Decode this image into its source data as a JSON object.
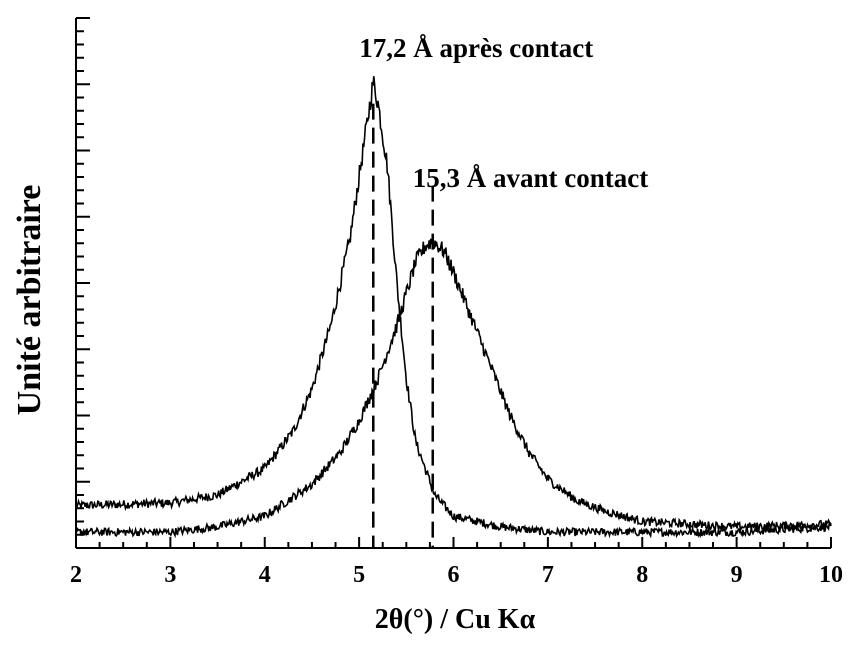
{
  "chart_data": {
    "type": "line",
    "xlabel": "2θ(°) / Cu Kα",
    "ylabel": "Unité arbitraire",
    "xlim": [
      2,
      10
    ],
    "ylim": [
      0,
      100
    ],
    "x_ticks": [
      "2",
      "3",
      "4",
      "5",
      "6",
      "7",
      "8",
      "9",
      "10"
    ],
    "y_tick_labels_shown": false,
    "grid": false,
    "series": [
      {
        "peak_x": 5.15,
        "peak_y": 88,
        "x": [
          2.0,
          3.0,
          3.5,
          4.0,
          4.3,
          4.5,
          4.7,
          4.9,
          5.0,
          5.1,
          5.15,
          5.2,
          5.3,
          5.4,
          5.5,
          5.6,
          5.8,
          6.0,
          6.5,
          7.0,
          8.0,
          9.0,
          10.0
        ],
        "y": [
          8,
          8.5,
          10,
          15,
          22,
          30,
          42,
          58,
          70,
          82,
          88,
          84,
          72,
          50,
          32,
          20,
          10,
          6,
          4,
          3,
          3,
          3,
          4
        ]
      },
      {
        "peak_x": 5.78,
        "peak_y": 58,
        "x": [
          2.0,
          3.0,
          3.5,
          4.0,
          4.5,
          4.8,
          5.0,
          5.2,
          5.4,
          5.5,
          5.6,
          5.7,
          5.78,
          5.9,
          6.0,
          6.2,
          6.4,
          6.6,
          6.8,
          7.0,
          7.3,
          7.6,
          8.0,
          9.0,
          10.0
        ],
        "y": [
          3,
          3,
          4,
          6,
          12,
          18,
          24,
          32,
          42,
          48,
          54,
          57,
          58,
          56,
          52,
          43,
          34,
          25,
          18,
          13,
          9,
          7,
          5,
          4,
          4.5
        ]
      }
    ],
    "annotations": [
      {
        "text": "17,2 Å après contact",
        "x": 5.15,
        "style": "dashed vertical line at peak"
      },
      {
        "text": "15,3 Å avant contact",
        "x": 5.78,
        "style": "dashed vertical line at peak"
      }
    ]
  }
}
